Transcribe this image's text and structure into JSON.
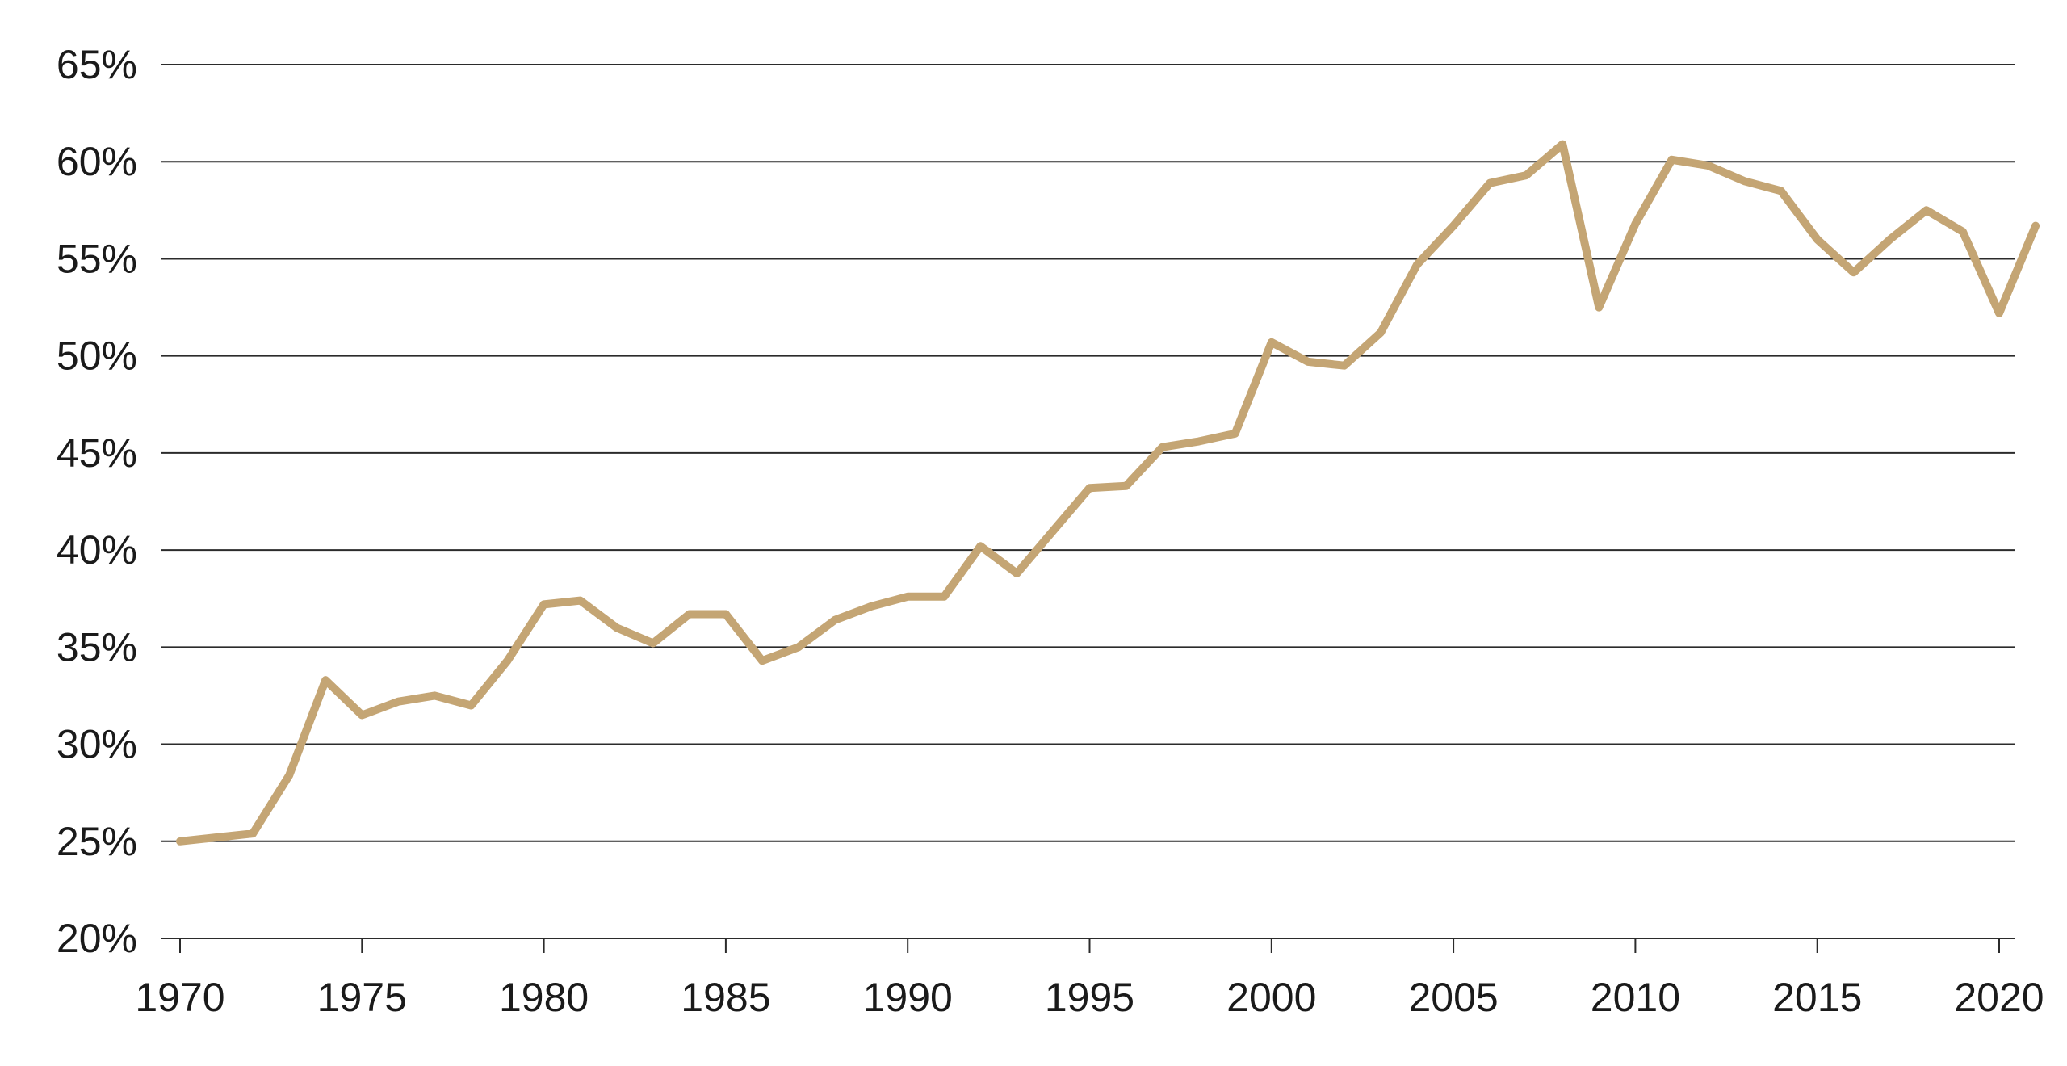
{
  "chart_data": {
    "type": "line",
    "title": "",
    "xlabel": "",
    "ylabel": "",
    "xlim": [
      1970,
      2021
    ],
    "ylim": [
      20,
      65
    ],
    "grid": true,
    "colors": {
      "line": "#C4A574",
      "grid": "#2b2b2b",
      "text": "#1a1a1a"
    },
    "x_ticks": [
      {
        "value": 1970,
        "label": "1970"
      },
      {
        "value": 1975,
        "label": "1975"
      },
      {
        "value": 1980,
        "label": "1980"
      },
      {
        "value": 1985,
        "label": "1985"
      },
      {
        "value": 1990,
        "label": "1990"
      },
      {
        "value": 1995,
        "label": "1995"
      },
      {
        "value": 2000,
        "label": "2000"
      },
      {
        "value": 2005,
        "label": "2005"
      },
      {
        "value": 2010,
        "label": "2010"
      },
      {
        "value": 2015,
        "label": "2015"
      },
      {
        "value": 2020,
        "label": "2020"
      }
    ],
    "y_ticks": [
      {
        "value": 20,
        "label": "20%"
      },
      {
        "value": 25,
        "label": "25%"
      },
      {
        "value": 30,
        "label": "30%"
      },
      {
        "value": 35,
        "label": "35%"
      },
      {
        "value": 40,
        "label": "40%"
      },
      {
        "value": 45,
        "label": "45%"
      },
      {
        "value": 50,
        "label": "50%"
      },
      {
        "value": 55,
        "label": "55%"
      },
      {
        "value": 60,
        "label": "60%"
      },
      {
        "value": 65,
        "label": "65%"
      }
    ],
    "series": [
      {
        "x": [
          1970,
          1971,
          1972,
          1973,
          1974,
          1975,
          1976,
          1977,
          1978,
          1979,
          1980,
          1981,
          1982,
          1983,
          1984,
          1985,
          1986,
          1987,
          1988,
          1989,
          1990,
          1991,
          1992,
          1993,
          1994,
          1995,
          1996,
          1997,
          1998,
          1999,
          2000,
          2001,
          2002,
          2003,
          2004,
          2005,
          2006,
          2007,
          2008,
          2009,
          2010,
          2011,
          2012,
          2013,
          2014,
          2015,
          2016,
          2017,
          2018,
          2019,
          2020,
          2021
        ],
        "values": [
          25.0,
          25.2,
          25.4,
          28.4,
          33.3,
          31.5,
          32.2,
          32.5,
          32.0,
          34.3,
          37.2,
          37.4,
          36.0,
          35.2,
          36.7,
          36.7,
          34.3,
          35.0,
          36.4,
          37.1,
          37.6,
          37.6,
          40.2,
          38.8,
          41.0,
          43.2,
          43.3,
          45.3,
          45.6,
          46.0,
          50.7,
          49.7,
          49.5,
          51.2,
          54.7,
          56.7,
          58.9,
          59.3,
          60.9,
          52.5,
          56.8,
          60.1,
          59.8,
          59.0,
          58.5,
          56.0,
          54.3,
          56.0,
          57.5,
          56.4,
          52.2,
          56.7
        ]
      }
    ]
  }
}
